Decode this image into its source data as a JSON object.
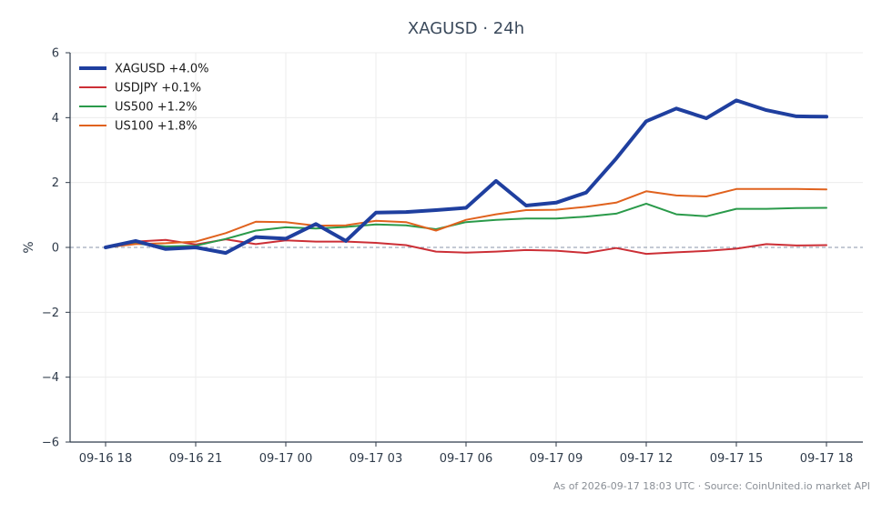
{
  "chart_data": {
    "type": "line",
    "title": "XAGUSD · 24h",
    "ylabel": "%",
    "ylim": [
      -6,
      6
    ],
    "yticks": [
      6,
      4,
      2,
      0,
      -2,
      -4,
      -6
    ],
    "ytick_labels": [
      "6",
      "4",
      "2",
      "0",
      "−2",
      "−4",
      "−6"
    ],
    "x_start": "2026-09-16 18:00",
    "x_step_hours": 1,
    "x_count": 25,
    "xticks": [
      "09-16 18",
      "09-16 21",
      "09-17 00",
      "09-17 03",
      "09-17 06",
      "09-17 09",
      "09-17 12",
      "09-17 15",
      "09-17 18"
    ],
    "grid": true,
    "zero_line": true,
    "legend_position": "top-left",
    "series": [
      {
        "name": "XAGUSD +4.0%",
        "color": "#1f3f9f",
        "values": [
          0.0,
          0.2,
          -0.05,
          0.0,
          -0.17,
          0.32,
          0.27,
          0.72,
          0.2,
          1.07,
          1.09,
          1.15,
          1.22,
          2.05,
          1.29,
          1.38,
          1.69,
          2.74,
          3.89,
          4.28,
          3.98,
          4.53,
          4.23,
          4.04,
          4.03
        ]
      },
      {
        "name": "USDJPY +0.1%",
        "color": "#cc2f36",
        "values": [
          0.0,
          0.18,
          0.23,
          0.09,
          0.25,
          0.1,
          0.22,
          0.18,
          0.18,
          0.14,
          0.07,
          -0.13,
          -0.16,
          -0.13,
          -0.08,
          -0.1,
          -0.17,
          -0.02,
          -0.2,
          -0.15,
          -0.11,
          -0.04,
          0.1,
          0.06,
          0.07
        ]
      },
      {
        "name": "US500 +1.2%",
        "color": "#2a9a4a",
        "values": [
          0.0,
          0.12,
          0.03,
          0.05,
          0.26,
          0.52,
          0.62,
          0.58,
          0.63,
          0.71,
          0.68,
          0.56,
          0.78,
          0.85,
          0.89,
          0.89,
          0.95,
          1.04,
          1.35,
          1.02,
          0.96,
          1.19,
          1.19,
          1.21,
          1.22
        ]
      },
      {
        "name": "US100 +1.8%",
        "color": "#e0621e",
        "values": [
          0.0,
          0.1,
          0.13,
          0.18,
          0.44,
          0.79,
          0.78,
          0.67,
          0.68,
          0.82,
          0.78,
          0.52,
          0.85,
          1.02,
          1.15,
          1.16,
          1.25,
          1.38,
          1.73,
          1.6,
          1.57,
          1.8,
          1.8,
          1.8,
          1.79
        ]
      }
    ],
    "footer": "As of 2026-09-17 18:03 UTC · Source: CoinUnited.io market API"
  }
}
